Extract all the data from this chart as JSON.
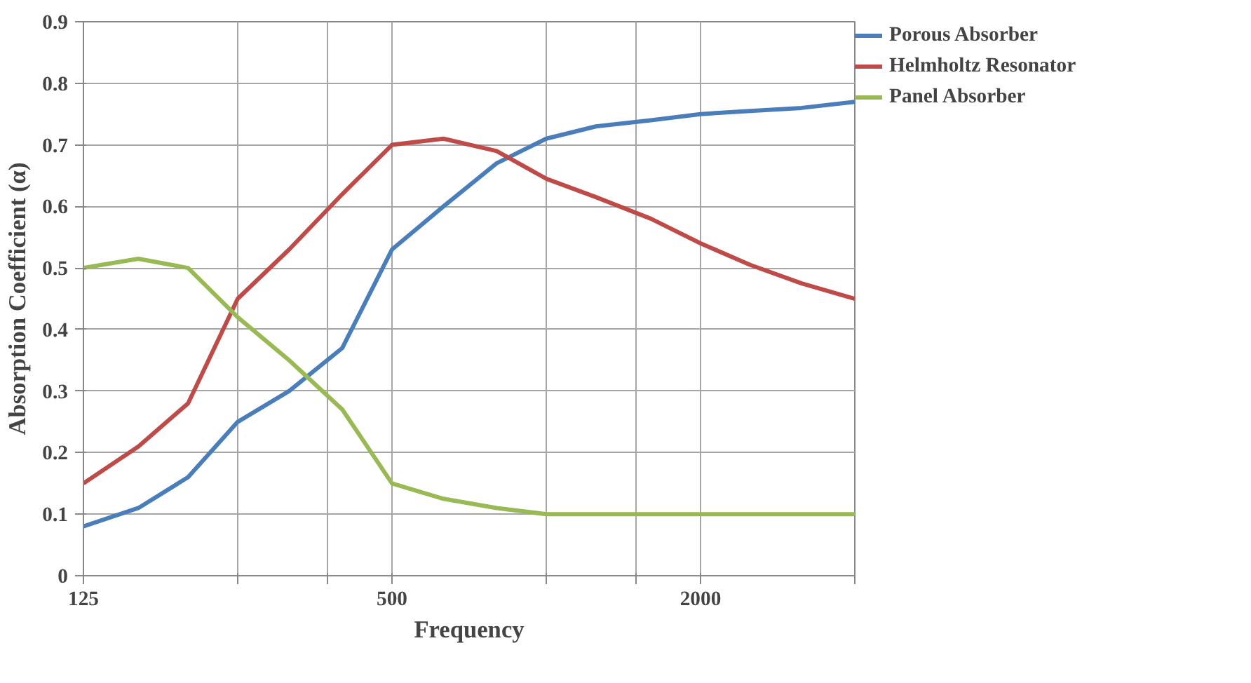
{
  "chart_data": {
    "type": "line",
    "xlabel": "Frequency",
    "ylabel": "Absorption Coefficient (α)",
    "log": "x",
    "x": [
      125,
      160,
      200,
      250,
      315,
      400,
      500,
      630,
      800,
      1000,
      1250,
      1600,
      2000,
      2500,
      3150,
      4000
    ],
    "xlim": [
      125,
      4000
    ],
    "xticks": [
      125,
      {
        "value": 250,
        "label": null
      },
      {
        "value": 375,
        "label": null
      },
      500,
      {
        "value": 1000,
        "label": null
      },
      {
        "value": 1500,
        "label": null
      },
      2000,
      {
        "value": 4000,
        "label": null
      }
    ],
    "ylim": [
      0,
      0.9
    ],
    "yticks": [
      0,
      0.1,
      0.2,
      0.3,
      0.4,
      0.5,
      0.6,
      0.7,
      0.8,
      0.9
    ],
    "grid": true,
    "legend": "right",
    "marker": "none",
    "line_style": "solid",
    "series": [
      {
        "name": "Porous Absorber",
        "color": "#4a7ebb",
        "values": [
          0.08,
          0.11,
          0.16,
          0.25,
          0.3,
          0.37,
          0.53,
          0.6,
          0.67,
          0.71,
          0.73,
          0.74,
          0.75,
          0.755,
          0.76,
          0.77
        ]
      },
      {
        "name": "Helmholtz Resonator",
        "color": "#be4b48",
        "values": [
          0.15,
          0.21,
          0.28,
          0.45,
          0.53,
          0.62,
          0.7,
          0.71,
          0.69,
          0.645,
          0.615,
          0.58,
          0.54,
          0.505,
          0.475,
          0.45
        ]
      },
      {
        "name": "Panel Absorber",
        "color": "#98b954",
        "values": [
          0.5,
          0.515,
          0.5,
          0.42,
          0.35,
          0.27,
          0.15,
          0.125,
          0.11,
          0.1,
          0.1,
          0.1,
          0.1,
          0.1,
          0.1,
          0.1
        ]
      }
    ]
  }
}
